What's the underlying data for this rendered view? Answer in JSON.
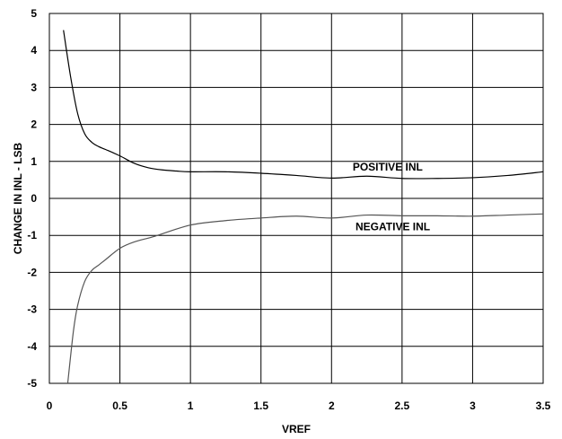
{
  "chart_data": {
    "type": "line",
    "title": "",
    "xlabel": "VREF",
    "ylabel": "CHANGE IN INL - LSB",
    "xlim": [
      0,
      3.5
    ],
    "ylim": [
      -5,
      5
    ],
    "x_ticks": [
      "0",
      "0.5",
      "1",
      "1.5",
      "2",
      "2.5",
      "3",
      "3.5"
    ],
    "y_ticks": [
      "5",
      "4",
      "3",
      "2",
      "1",
      "0",
      "-1",
      "-2",
      "-3",
      "-4",
      "-5"
    ],
    "grid": true,
    "legend": "none",
    "colors": {
      "positive": "#000000",
      "negative": "#555555",
      "grid": "#000000"
    },
    "series": [
      {
        "name": "POSITIVE INL",
        "x": [
          0.1,
          0.15,
          0.2,
          0.25,
          0.3,
          0.35,
          0.4,
          0.5,
          0.6,
          0.7,
          0.8,
          0.9,
          1.0,
          1.25,
          1.5,
          1.75,
          2.0,
          2.25,
          2.5,
          2.75,
          3.0,
          3.25,
          3.5
        ],
        "y": [
          4.55,
          3.3,
          2.3,
          1.75,
          1.52,
          1.4,
          1.32,
          1.15,
          0.95,
          0.83,
          0.77,
          0.74,
          0.72,
          0.72,
          0.68,
          0.62,
          0.55,
          0.6,
          0.54,
          0.54,
          0.56,
          0.62,
          0.72
        ]
      },
      {
        "name": "NEGATIVE INL",
        "x": [
          0.13,
          0.17,
          0.2,
          0.25,
          0.3,
          0.35,
          0.4,
          0.5,
          0.6,
          0.75,
          1.0,
          1.25,
          1.5,
          1.75,
          2.0,
          2.25,
          2.5,
          2.75,
          3.0,
          3.25,
          3.5
        ],
        "y": [
          -5.0,
          -3.6,
          -2.9,
          -2.25,
          -1.95,
          -1.8,
          -1.65,
          -1.35,
          -1.18,
          -1.02,
          -0.72,
          -0.6,
          -0.53,
          -0.48,
          -0.53,
          -0.45,
          -0.47,
          -0.47,
          -0.48,
          -0.45,
          -0.42
        ]
      }
    ],
    "annotations": [
      {
        "text": "POSITIVE INL",
        "x": 2.15,
        "y": 0.85
      },
      {
        "text": "NEGATIVE INL",
        "x": 2.17,
        "y": -0.77
      }
    ]
  }
}
